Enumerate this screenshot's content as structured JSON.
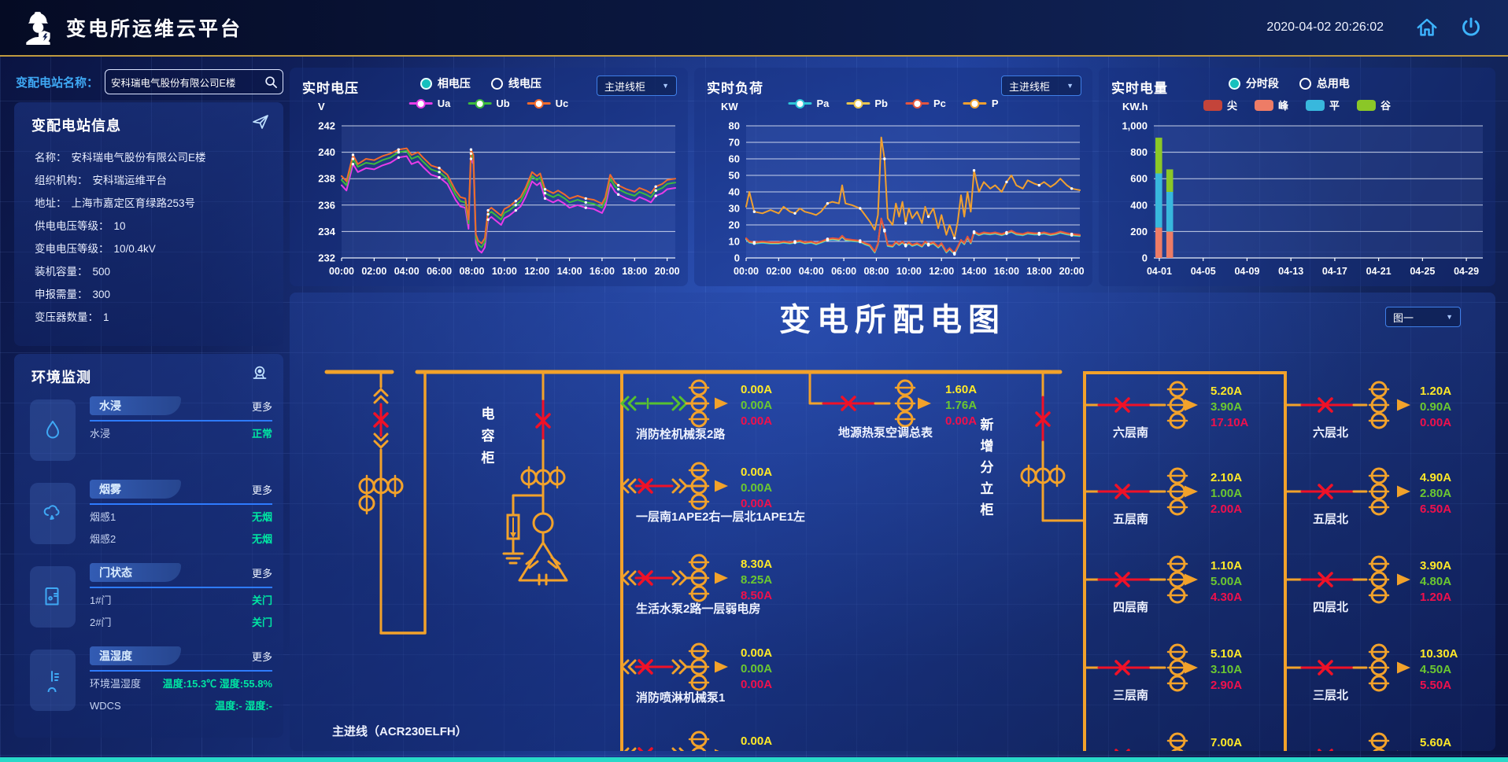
{
  "header": {
    "title": "变电所运维云平台",
    "datetime": "2020-04-02 20:26:02"
  },
  "sidebar": {
    "search": {
      "label": "变配电站名称：",
      "value": "安科瑞电气股份有限公司E楼"
    },
    "station_info": {
      "title": "变配电站信息",
      "fields": [
        {
          "label": "名称：",
          "value": "安科瑞电气股份有限公司E楼"
        },
        {
          "label": "组织机构：",
          "value": "安科瑞运维平台"
        },
        {
          "label": "地址：",
          "value": "上海市嘉定区育绿路253号"
        },
        {
          "label": "供电电压等级：",
          "value": "10"
        },
        {
          "label": "变电电压等级：",
          "value": "10/0.4kV"
        },
        {
          "label": "装机容量：",
          "value": "500"
        },
        {
          "label": "申报需量：",
          "value": "300"
        },
        {
          "label": "变压器数量：",
          "value": "1"
        }
      ]
    },
    "environment": {
      "title": "环境监测",
      "more_label": "更多",
      "groups": [
        {
          "icon": "water-drop-icon",
          "tab": "水浸",
          "rows": [
            {
              "name": "水浸",
              "value": "正常"
            }
          ]
        },
        {
          "icon": "smoke-icon",
          "tab": "烟雾",
          "rows": [
            {
              "name": "烟感1",
              "value": "无烟"
            },
            {
              "name": "烟感2",
              "value": "无烟"
            }
          ]
        },
        {
          "icon": "door-icon",
          "tab": "门状态",
          "rows": [
            {
              "name": "1#门",
              "value": "关门"
            },
            {
              "name": "2#门",
              "value": "关门"
            }
          ]
        },
        {
          "icon": "thermometer-icon",
          "tab": "温湿度",
          "rows": [
            {
              "name": "环境温湿度",
              "value": "温度:15.3℃ 湿度:55.8%"
            },
            {
              "name": "WDCS",
              "value": "温度:- 湿度:-"
            }
          ]
        }
      ]
    }
  },
  "panels": {
    "voltage": {
      "title": "实时电压",
      "unit": "V",
      "dropdown": "主进线柜",
      "radios": [
        {
          "label": "相电压",
          "selected": true
        },
        {
          "label": "线电压",
          "selected": false
        }
      ],
      "legend": [
        {
          "label": "Ua",
          "color": "#e83ce8"
        },
        {
          "label": "Ub",
          "color": "#3dbb3d"
        },
        {
          "label": "Uc",
          "color": "#f06a2c"
        }
      ]
    },
    "load": {
      "title": "实时负荷",
      "unit": "KW",
      "dropdown": "主进线柜",
      "legend": [
        {
          "label": "Pa",
          "color": "#2ec7d8"
        },
        {
          "label": "Pb",
          "color": "#e8c44f"
        },
        {
          "label": "Pc",
          "color": "#e25540"
        },
        {
          "label": "P",
          "color": "#f0a030"
        }
      ]
    },
    "energy": {
      "title": "实时电量",
      "unit": "KW.h",
      "radios": [
        {
          "label": "分时段",
          "selected": true
        },
        {
          "label": "总用电",
          "selected": false
        }
      ],
      "legend": [
        {
          "label": "尖",
          "color": "#c4443a"
        },
        {
          "label": "峰",
          "color": "#ee7c66"
        },
        {
          "label": "平",
          "color": "#38b8dd"
        },
        {
          "label": "谷",
          "color": "#8bc727"
        }
      ]
    }
  },
  "chart_data": [
    {
      "type": "line",
      "title": "实时电压",
      "ylabel": "V",
      "ylim": [
        232,
        242
      ],
      "yticks": [
        242,
        240,
        238,
        236,
        234,
        232
      ],
      "xlim": [
        0,
        20.5
      ],
      "xticks": [
        "00:00",
        "02:00",
        "04:00",
        "06:00",
        "08:00",
        "10:00",
        "12:00",
        "14:00",
        "16:00",
        "18:00",
        "20:00"
      ],
      "xtick_hours": [
        0,
        2,
        4,
        6,
        8,
        10,
        12,
        14,
        16,
        18,
        20
      ],
      "x": [
        0,
        0.3,
        0.7,
        1,
        1.5,
        2,
        2.5,
        3,
        3.5,
        4,
        4.3,
        4.7,
        5,
        5.5,
        6,
        6.5,
        7,
        7.3,
        7.6,
        7.8,
        7.95,
        8.1,
        8.25,
        8.4,
        8.6,
        8.8,
        9,
        9.2,
        9.5,
        9.8,
        10,
        10.3,
        10.7,
        11,
        11.3,
        11.7,
        12,
        12.2,
        12.5,
        13,
        13.3,
        13.7,
        14,
        14.5,
        15,
        15.5,
        16,
        16.2,
        16.5,
        16.8,
        17,
        17.5,
        18,
        18.3,
        18.7,
        19,
        19.3,
        19.7,
        20,
        20.5
      ],
      "series": [
        {
          "name": "Ua",
          "color": "#e83ce8",
          "values": [
            237.5,
            237.1,
            239.1,
            238.5,
            238.8,
            238.7,
            239.0,
            239.2,
            239.6,
            239.7,
            239.1,
            239.3,
            238.9,
            238.3,
            238.1,
            237.6,
            236.4,
            235.9,
            235.8,
            234.2,
            239.5,
            239.1,
            233.1,
            232.6,
            232.4,
            232.8,
            234.9,
            235.1,
            234.8,
            234.5,
            235.0,
            235.2,
            235.6,
            235.9,
            236.6,
            237.8,
            237.5,
            237.7,
            236.5,
            236.2,
            236.4,
            236.1,
            235.8,
            236.0,
            235.8,
            235.7,
            235.4,
            235.9,
            237.6,
            237.0,
            236.8,
            236.5,
            236.3,
            236.6,
            236.4,
            236.2,
            236.7,
            236.9,
            237.2,
            237.3
          ]
        },
        {
          "name": "Ub",
          "color": "#3dbb3d",
          "values": [
            237.9,
            237.5,
            239.5,
            238.9,
            239.2,
            239.1,
            239.4,
            239.6,
            240.0,
            240.1,
            239.5,
            239.7,
            239.3,
            238.7,
            238.5,
            238.0,
            236.8,
            236.3,
            236.2,
            234.6,
            239.9,
            239.5,
            233.5,
            233.0,
            232.8,
            233.2,
            235.3,
            235.5,
            235.2,
            234.9,
            235.4,
            235.6,
            236.0,
            236.3,
            237.0,
            238.2,
            237.9,
            238.1,
            236.9,
            236.6,
            236.8,
            236.5,
            236.2,
            236.4,
            236.2,
            236.1,
            235.8,
            236.3,
            238.0,
            237.4,
            237.2,
            236.9,
            236.7,
            237.0,
            236.8,
            236.6,
            237.1,
            237.3,
            237.6,
            237.7
          ]
        },
        {
          "name": "Uc",
          "color": "#f06a2c",
          "values": [
            238.2,
            237.8,
            239.8,
            239.1,
            239.5,
            239.4,
            239.7,
            239.9,
            240.2,
            240.3,
            239.8,
            240.0,
            239.6,
            239.0,
            238.8,
            238.3,
            237.1,
            236.6,
            236.5,
            234.9,
            240.2,
            239.8,
            233.8,
            233.3,
            233.1,
            233.5,
            235.6,
            235.8,
            235.5,
            235.2,
            235.7,
            235.9,
            236.3,
            236.6,
            237.3,
            238.5,
            238.2,
            238.4,
            237.2,
            236.9,
            237.1,
            236.8,
            236.5,
            236.7,
            236.5,
            236.4,
            236.1,
            236.6,
            238.3,
            237.7,
            237.5,
            237.2,
            237.0,
            237.3,
            237.1,
            236.9,
            237.4,
            237.6,
            237.9,
            238.0
          ]
        }
      ]
    },
    {
      "type": "line",
      "title": "实时负荷",
      "ylabel": "KW",
      "ylim": [
        0,
        80
      ],
      "yticks": [
        80,
        70,
        60,
        50,
        40,
        30,
        20,
        10,
        0
      ],
      "xlim": [
        0,
        20.5
      ],
      "xticks": [
        "00:00",
        "02:00",
        "04:00",
        "06:00",
        "08:00",
        "10:00",
        "12:00",
        "14:00",
        "16:00",
        "18:00",
        "20:00"
      ],
      "xtick_hours": [
        0,
        2,
        4,
        6,
        8,
        10,
        12,
        14,
        16,
        18,
        20
      ],
      "x": [
        0,
        0.2,
        0.5,
        1,
        1.5,
        2,
        2.3,
        2.7,
        3,
        3.3,
        3.6,
        4,
        4.3,
        4.6,
        5,
        5.3,
        5.7,
        5.9,
        6.1,
        6.5,
        7,
        7.3,
        7.6,
        7.9,
        8.1,
        8.3,
        8.5,
        8.7,
        9,
        9.2,
        9.4,
        9.6,
        9.8,
        10,
        10.2,
        10.5,
        10.8,
        11,
        11.2,
        11.5,
        11.8,
        12,
        12.3,
        12.5,
        12.8,
        13,
        13.2,
        13.4,
        13.6,
        13.8,
        14,
        14.3,
        14.6,
        15,
        15.3,
        15.7,
        16,
        16.3,
        16.6,
        17,
        17.3,
        17.7,
        18,
        18.3,
        18.7,
        19,
        19.3,
        19.7,
        20,
        20.5
      ],
      "series": [
        {
          "name": "P",
          "color": "#f0a030",
          "values": [
            31,
            40,
            28,
            27,
            29,
            27,
            31,
            28,
            27,
            30,
            28,
            27,
            26,
            28,
            33,
            34,
            33,
            44,
            33,
            32,
            30,
            26,
            22,
            17,
            26,
            73,
            60,
            24,
            20,
            33,
            25,
            34,
            21,
            30,
            24,
            28,
            21,
            31,
            25,
            30,
            18,
            26,
            14,
            20,
            12,
            22,
            38,
            25,
            40,
            28,
            53,
            40,
            46,
            42,
            44,
            40,
            46,
            50,
            44,
            42,
            47,
            45,
            44,
            46,
            43,
            45,
            48,
            44,
            42,
            41
          ]
        },
        {
          "name": "Pa",
          "color": "#2ec7d8",
          "values": [
            11.2,
            9.2,
            8.7,
            9.2,
            8.7,
            8.7,
            9.2,
            8.7,
            9.2,
            9.7,
            8.7,
            9.2,
            8.2,
            9.2,
            10.7,
            11.2,
            10.7,
            12.7,
            10.7,
            10.2,
            9.7,
            8.2,
            7.2,
            3.2,
            8.2,
            23.2,
            16.2,
            7.2,
            6.7,
            9.2,
            7.7,
            9.2,
            7.2,
            8.7,
            7.2,
            8.2,
            6.7,
            9.2,
            7.7,
            8.7,
            6.2,
            8.2,
            3.2,
            5.2,
            2.2,
            6.2,
            10.2,
            8.2,
            12.2,
            8.7,
            15.2,
            13.7,
            14.7,
            14.2,
            14.7,
            13.7,
            14.7,
            15.7,
            14.2,
            13.7,
            14.7,
            14.2,
            14.2,
            14.7,
            13.7,
            14.2,
            15.2,
            14.2,
            13.7,
            13.2
          ]
        },
        {
          "name": "Pb",
          "color": "#e8c44f",
          "values": [
            11.6,
            9.6,
            9.1,
            9.6,
            9.1,
            9.1,
            9.6,
            9.1,
            9.6,
            10.1,
            9.1,
            9.6,
            8.6,
            9.6,
            11.1,
            11.6,
            11.1,
            13.1,
            11.1,
            10.6,
            10.1,
            8.6,
            7.6,
            3.6,
            8.6,
            23.6,
            16.6,
            7.6,
            7.1,
            9.6,
            8.1,
            9.6,
            7.6,
            9.1,
            7.6,
            8.6,
            7.1,
            9.6,
            8.1,
            9.1,
            6.6,
            8.6,
            3.6,
            5.6,
            2.6,
            6.6,
            10.6,
            8.6,
            12.6,
            9.1,
            15.6,
            14.1,
            15.1,
            14.6,
            15.1,
            14.1,
            15.1,
            16.1,
            14.6,
            14.1,
            15.1,
            14.6,
            14.6,
            15.1,
            14.1,
            14.6,
            15.6,
            14.6,
            14.1,
            13.6
          ]
        },
        {
          "name": "Pc",
          "color": "#e25540",
          "values": [
            12,
            10,
            9.5,
            10,
            9.5,
            9.5,
            10,
            9.5,
            10,
            10.5,
            9.5,
            10,
            9,
            10,
            11.5,
            12,
            11.5,
            13.5,
            11.5,
            11,
            10.5,
            9,
            8,
            4,
            9,
            24,
            17,
            8,
            7.5,
            10,
            8.5,
            10,
            8,
            9.5,
            8,
            9,
            7.5,
            10,
            8.5,
            9.5,
            7,
            9,
            4,
            6,
            3,
            7,
            11,
            9,
            13,
            9.5,
            16,
            14.5,
            15.5,
            15,
            15.5,
            14.5,
            15.5,
            16.5,
            15,
            14.5,
            15.5,
            15,
            15,
            15.5,
            14.5,
            15,
            16,
            15,
            14.5,
            14
          ]
        }
      ]
    },
    {
      "type": "bar",
      "title": "实时电量",
      "ylabel": "KW.h",
      "ylim": [
        0,
        1000
      ],
      "ytick_labels": [
        "1,000",
        "800",
        "600",
        "400",
        "200",
        "0"
      ],
      "ytick_values": [
        1000,
        800,
        600,
        400,
        200,
        0
      ],
      "days": 30,
      "xticks": [
        {
          "day": 0,
          "label": "04-01"
        },
        {
          "day": 4,
          "label": "04-05"
        },
        {
          "day": 8,
          "label": "04-09"
        },
        {
          "day": 12,
          "label": "04-13"
        },
        {
          "day": 16,
          "label": "04-17"
        },
        {
          "day": 20,
          "label": "04-21"
        },
        {
          "day": 24,
          "label": "04-25"
        },
        {
          "day": 28,
          "label": "04-29"
        }
      ],
      "stack_order": [
        "尖",
        "峰",
        "平",
        "谷"
      ],
      "colors": {
        "尖": "#c4443a",
        "峰": "#ee7c66",
        "平": "#38b8dd",
        "谷": "#8bc727"
      },
      "bars": [
        {
          "day": 0,
          "尖": 0,
          "峰": 230,
          "平": 410,
          "谷": 270
        },
        {
          "day": 1,
          "尖": 0,
          "峰": 200,
          "平": 300,
          "谷": 170
        }
      ]
    }
  ],
  "diagram": {
    "title": "变电所配电图",
    "selector": "图一",
    "incoming_label": "主进线（ACR230ELFH）",
    "capacitor_label": "电容柜",
    "new_cabinet_label": "新增分立柜",
    "value_colors": [
      "#ffe928",
      "#6cc830",
      "#f0104c"
    ],
    "middle_feeders": [
      {
        "name": "消防栓机械泵2路",
        "currents": [
          "0.00A",
          "0.00A",
          "0.00A"
        ],
        "switch": "green"
      },
      {
        "name": "一层南1APE2右一层北1APE1左",
        "currents": [
          "0.00A",
          "0.00A",
          "0.00A"
        ],
        "switch": "red"
      },
      {
        "name": "生活水泵2路一层弱电房",
        "currents": [
          "8.30A",
          "8.25A",
          "8.50A"
        ],
        "switch": "red"
      },
      {
        "name": "消防喷淋机械泵1",
        "currents": [
          "0.00A",
          "0.00A",
          "0.00A"
        ],
        "switch": "red"
      },
      {
        "name": "",
        "currents": [
          "0.00A"
        ],
        "switch": "red",
        "clipped": true
      }
    ],
    "heat_pump_feeder": {
      "name": "地源热泵空调总表",
      "currents": [
        "1.60A",
        "1.76A",
        "0.00A"
      ]
    },
    "south_feeders": [
      {
        "name": "六层南",
        "currents": [
          "5.20A",
          "3.90A",
          "17.10A"
        ]
      },
      {
        "name": "五层南",
        "currents": [
          "2.10A",
          "1.00A",
          "2.00A"
        ]
      },
      {
        "name": "四层南",
        "currents": [
          "1.10A",
          "5.00A",
          "4.30A"
        ]
      },
      {
        "name": "三层南",
        "currents": [
          "5.10A",
          "3.10A",
          "2.90A"
        ]
      },
      {
        "name": "",
        "currents": [
          "7.00A"
        ],
        "clipped": true
      }
    ],
    "north_feeders": [
      {
        "name": "六层北",
        "currents": [
          "1.20A",
          "0.90A",
          "0.00A"
        ]
      },
      {
        "name": "五层北",
        "currents": [
          "4.90A",
          "2.80A",
          "6.50A"
        ]
      },
      {
        "name": "四层北",
        "currents": [
          "3.90A",
          "4.80A",
          "1.20A"
        ]
      },
      {
        "name": "三层北",
        "currents": [
          "10.30A",
          "4.50A",
          "5.50A"
        ]
      },
      {
        "name": "",
        "currents": [
          "5.60A"
        ],
        "clipped": true
      }
    ]
  }
}
